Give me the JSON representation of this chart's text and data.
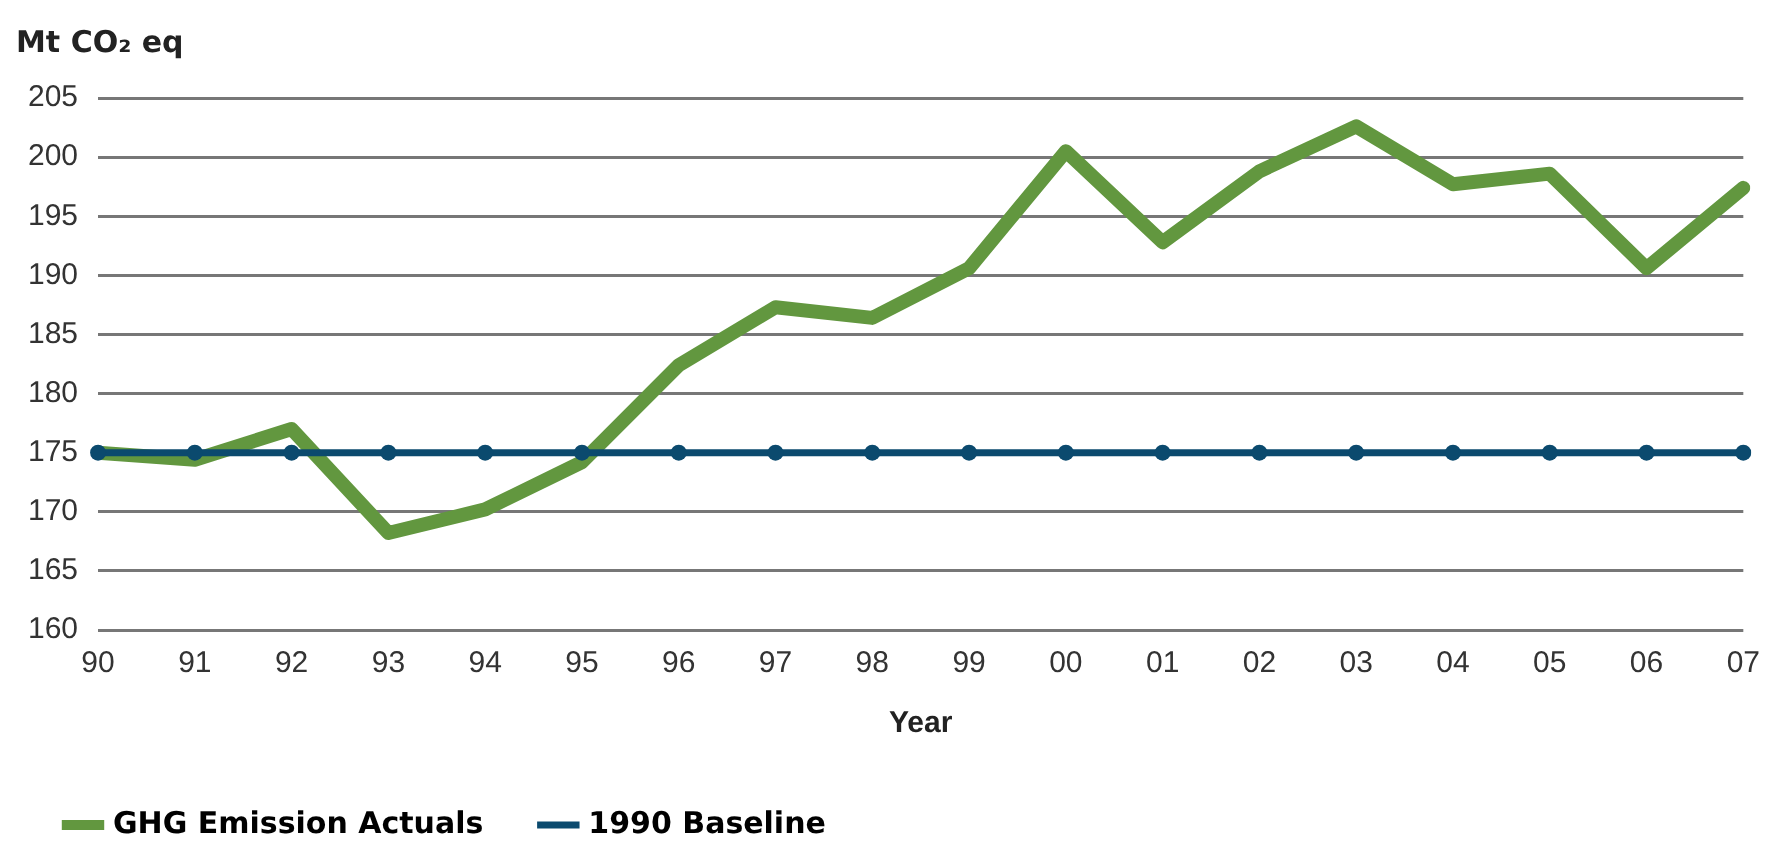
{
  "chart_data": {
    "type": "line",
    "ylabel": "Mt CO₂ eq",
    "xlabel": "Year",
    "categories": [
      "90",
      "91",
      "92",
      "93",
      "94",
      "95",
      "96",
      "97",
      "98",
      "99",
      "00",
      "01",
      "02",
      "03",
      "04",
      "05",
      "06",
      "07"
    ],
    "series": [
      {
        "name": "GHG Emission Actuals",
        "color": "#62973f",
        "marker": "none",
        "values": [
          175,
          174.4,
          177,
          168.2,
          170.2,
          174.2,
          182.4,
          187.3,
          186.4,
          190.6,
          200.5,
          192.8,
          198.8,
          202.6,
          197.7,
          198.6,
          190.6,
          197.4
        ]
      },
      {
        "name": "1990 Baseline",
        "color": "#0b4a6e",
        "marker": "circle",
        "values": [
          175,
          175,
          175,
          175,
          175,
          175,
          175,
          175,
          175,
          175,
          175,
          175,
          175,
          175,
          175,
          175,
          175,
          175
        ]
      }
    ],
    "ylim": [
      160,
      205
    ],
    "yticks": [
      160,
      165,
      170,
      175,
      180,
      185,
      190,
      195,
      200,
      205
    ],
    "grid": "y",
    "legend": "bottom left",
    "line_style": "solid"
  }
}
